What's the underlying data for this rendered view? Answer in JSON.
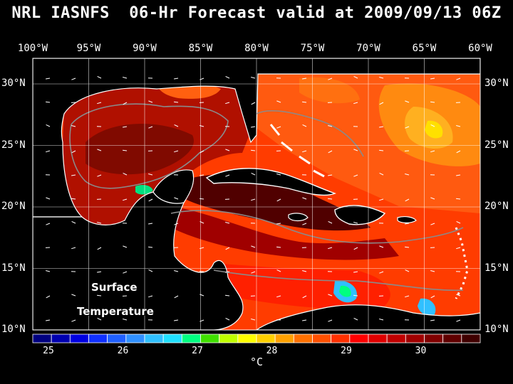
{
  "title": "NRL IASNFS  06-Hr Forecast valid at 2009/09/13 06Z",
  "lon_labels": [
    "100°W",
    "95°W",
    "90°W",
    "85°W",
    "80°W",
    "75°W",
    "70°W",
    "65°W",
    "60°W"
  ],
  "lat_labels": [
    "30°N",
    "25°N",
    "20°N",
    "15°N",
    "10°N"
  ],
  "overlay": {
    "line1": "Surface",
    "line2": "Temperature"
  },
  "colorbar": {
    "ticks": [
      "25",
      "26",
      "27",
      "28",
      "29",
      "30"
    ],
    "unit": "°C",
    "colors": [
      "#000080",
      "#0000b0",
      "#0000e0",
      "#1030ff",
      "#2060ff",
      "#3090ff",
      "#30c0ff",
      "#20e0ff",
      "#00ff80",
      "#40e000",
      "#c0ff00",
      "#ffff00",
      "#ffd000",
      "#ffa000",
      "#ff7000",
      "#ff5000",
      "#ff3000",
      "#ff0000",
      "#e00000",
      "#c00000",
      "#a00000",
      "#800000",
      "#600000",
      "#400000"
    ]
  },
  "colors": {
    "land": "#000000",
    "coast": "#ffffff",
    "isobath": "#8a8a8a"
  }
}
